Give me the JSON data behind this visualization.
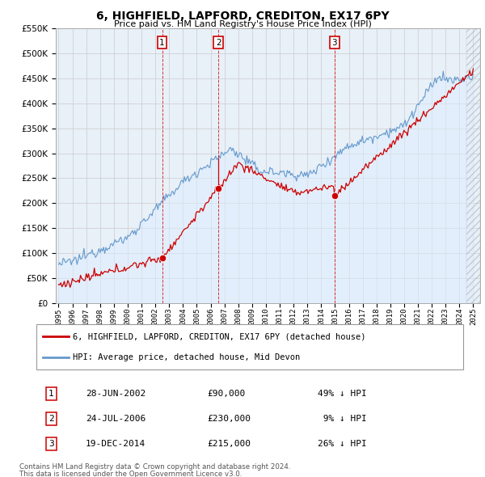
{
  "title": "6, HIGHFIELD, LAPFORD, CREDITON, EX17 6PY",
  "subtitle": "Price paid vs. HM Land Registry's House Price Index (HPI)",
  "legend_property": "6, HIGHFIELD, LAPFORD, CREDITON, EX17 6PY (detached house)",
  "legend_hpi": "HPI: Average price, detached house, Mid Devon",
  "footer1": "Contains HM Land Registry data © Crown copyright and database right 2024.",
  "footer2": "This data is licensed under the Open Government Licence v3.0.",
  "sales": [
    {
      "label": "1",
      "date": "28-JUN-2002",
      "price": 90000,
      "pct": "49%",
      "year": 2002.49
    },
    {
      "label": "2",
      "date": "24-JUL-2006",
      "price": 230000,
      "pct": "9%",
      "year": 2006.56
    },
    {
      "label": "3",
      "date": "19-DEC-2014",
      "price": 215000,
      "pct": "26%",
      "year": 2014.96
    }
  ],
  "sale_dashed_color": "#dd0000",
  "hpi_color": "#6699cc",
  "hpi_fill_color": "#ddeeff",
  "property_color": "#cc0000",
  "grid_color": "#cccccc",
  "background_color": "#ffffff",
  "chart_bg_color": "#e8f0f8",
  "ylim_max": 550000,
  "ytick_step": 50000,
  "xlim_start": 1994.8,
  "xlim_end": 2025.5
}
